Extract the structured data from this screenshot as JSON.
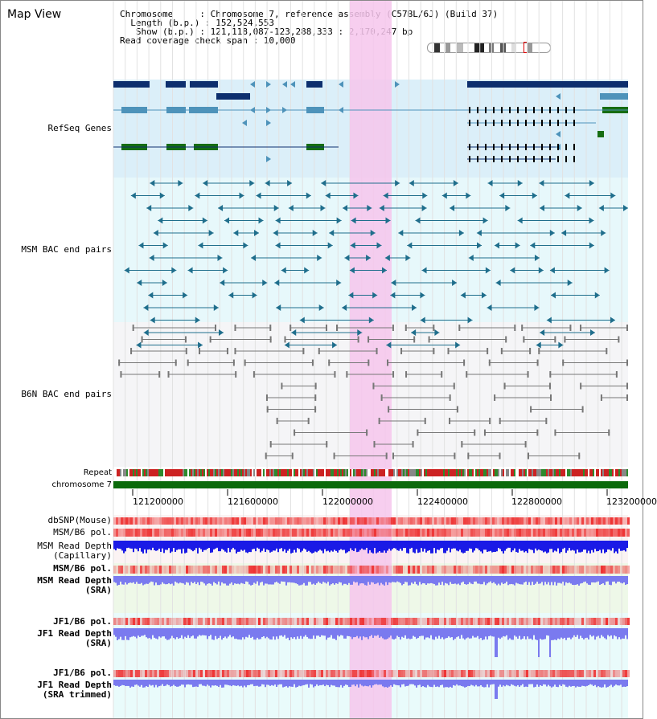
{
  "view": {
    "title": "Map View",
    "info": {
      "chromosome_line": "Chromosome     : Chromosome 7, reference assembly (C57BL/6J) (Build 37)",
      "length_line": "  Length (b.p.) : 152,524,553",
      "show_line": "   Show (b.p.) : 121,118,087-123,288,333 : 2,170,247 bp",
      "coverage_line": "Read coverage check span : 10,000"
    }
  },
  "colors": {
    "highlight": "#f6c6ec",
    "refseq_bg": "#dbeff9",
    "msm_bac_bg": "#e7f8fb",
    "b6n_bac_bg": "#f5f5f7",
    "refseq_dark": "#0d2f6e",
    "refseq_light": "#4e93ba",
    "refseq_green": "#166d12",
    "msm_bac": "#1f6e8c",
    "b6n_bac": "#777777",
    "depth_blue": "#1a1ae6",
    "depth_light": "#7a7aef",
    "snp_red": "#ee5555",
    "chromosome_green": "#0b6a0b"
  },
  "tracks": [
    {
      "name": "RefSeq Genes",
      "color": "#2a2ab8"
    },
    {
      "name": "MSM BAC end pairs",
      "color": "#1f6e8c"
    },
    {
      "name": "B6N BAC end pairs",
      "color": "#666666"
    },
    {
      "name": "Repeat",
      "color": "#000000"
    },
    {
      "name": "chromosome 7",
      "color": "#000000"
    },
    {
      "name": "dbSNP(Mouse)",
      "color": "#444444"
    },
    {
      "name": "MSM/B6 pol.",
      "color": "#444444"
    },
    {
      "name": "MSM Read Depth\n(Capillary)",
      "color": "#444444"
    },
    {
      "name": "MSM/B6 pol.",
      "color": "#e08a00"
    },
    {
      "name": "MSM Read Depth\n(SRA)",
      "color": "#1010c0"
    },
    {
      "name": "JF1/B6 pol.",
      "color": "#e08a00"
    },
    {
      "name": "JF1 Read Depth\n(SRA)",
      "color": "#1010c0"
    },
    {
      "name": "JF1/B6 pol.",
      "color": "#e08a00"
    },
    {
      "name": "JF1 Read Depth\n(SRA trimmed)",
      "color": "#1010c0"
    }
  ],
  "axis": {
    "ticks": [
      "121200000",
      "121600000",
      "122000000",
      "122400000",
      "122800000",
      "123200000"
    ]
  }
}
